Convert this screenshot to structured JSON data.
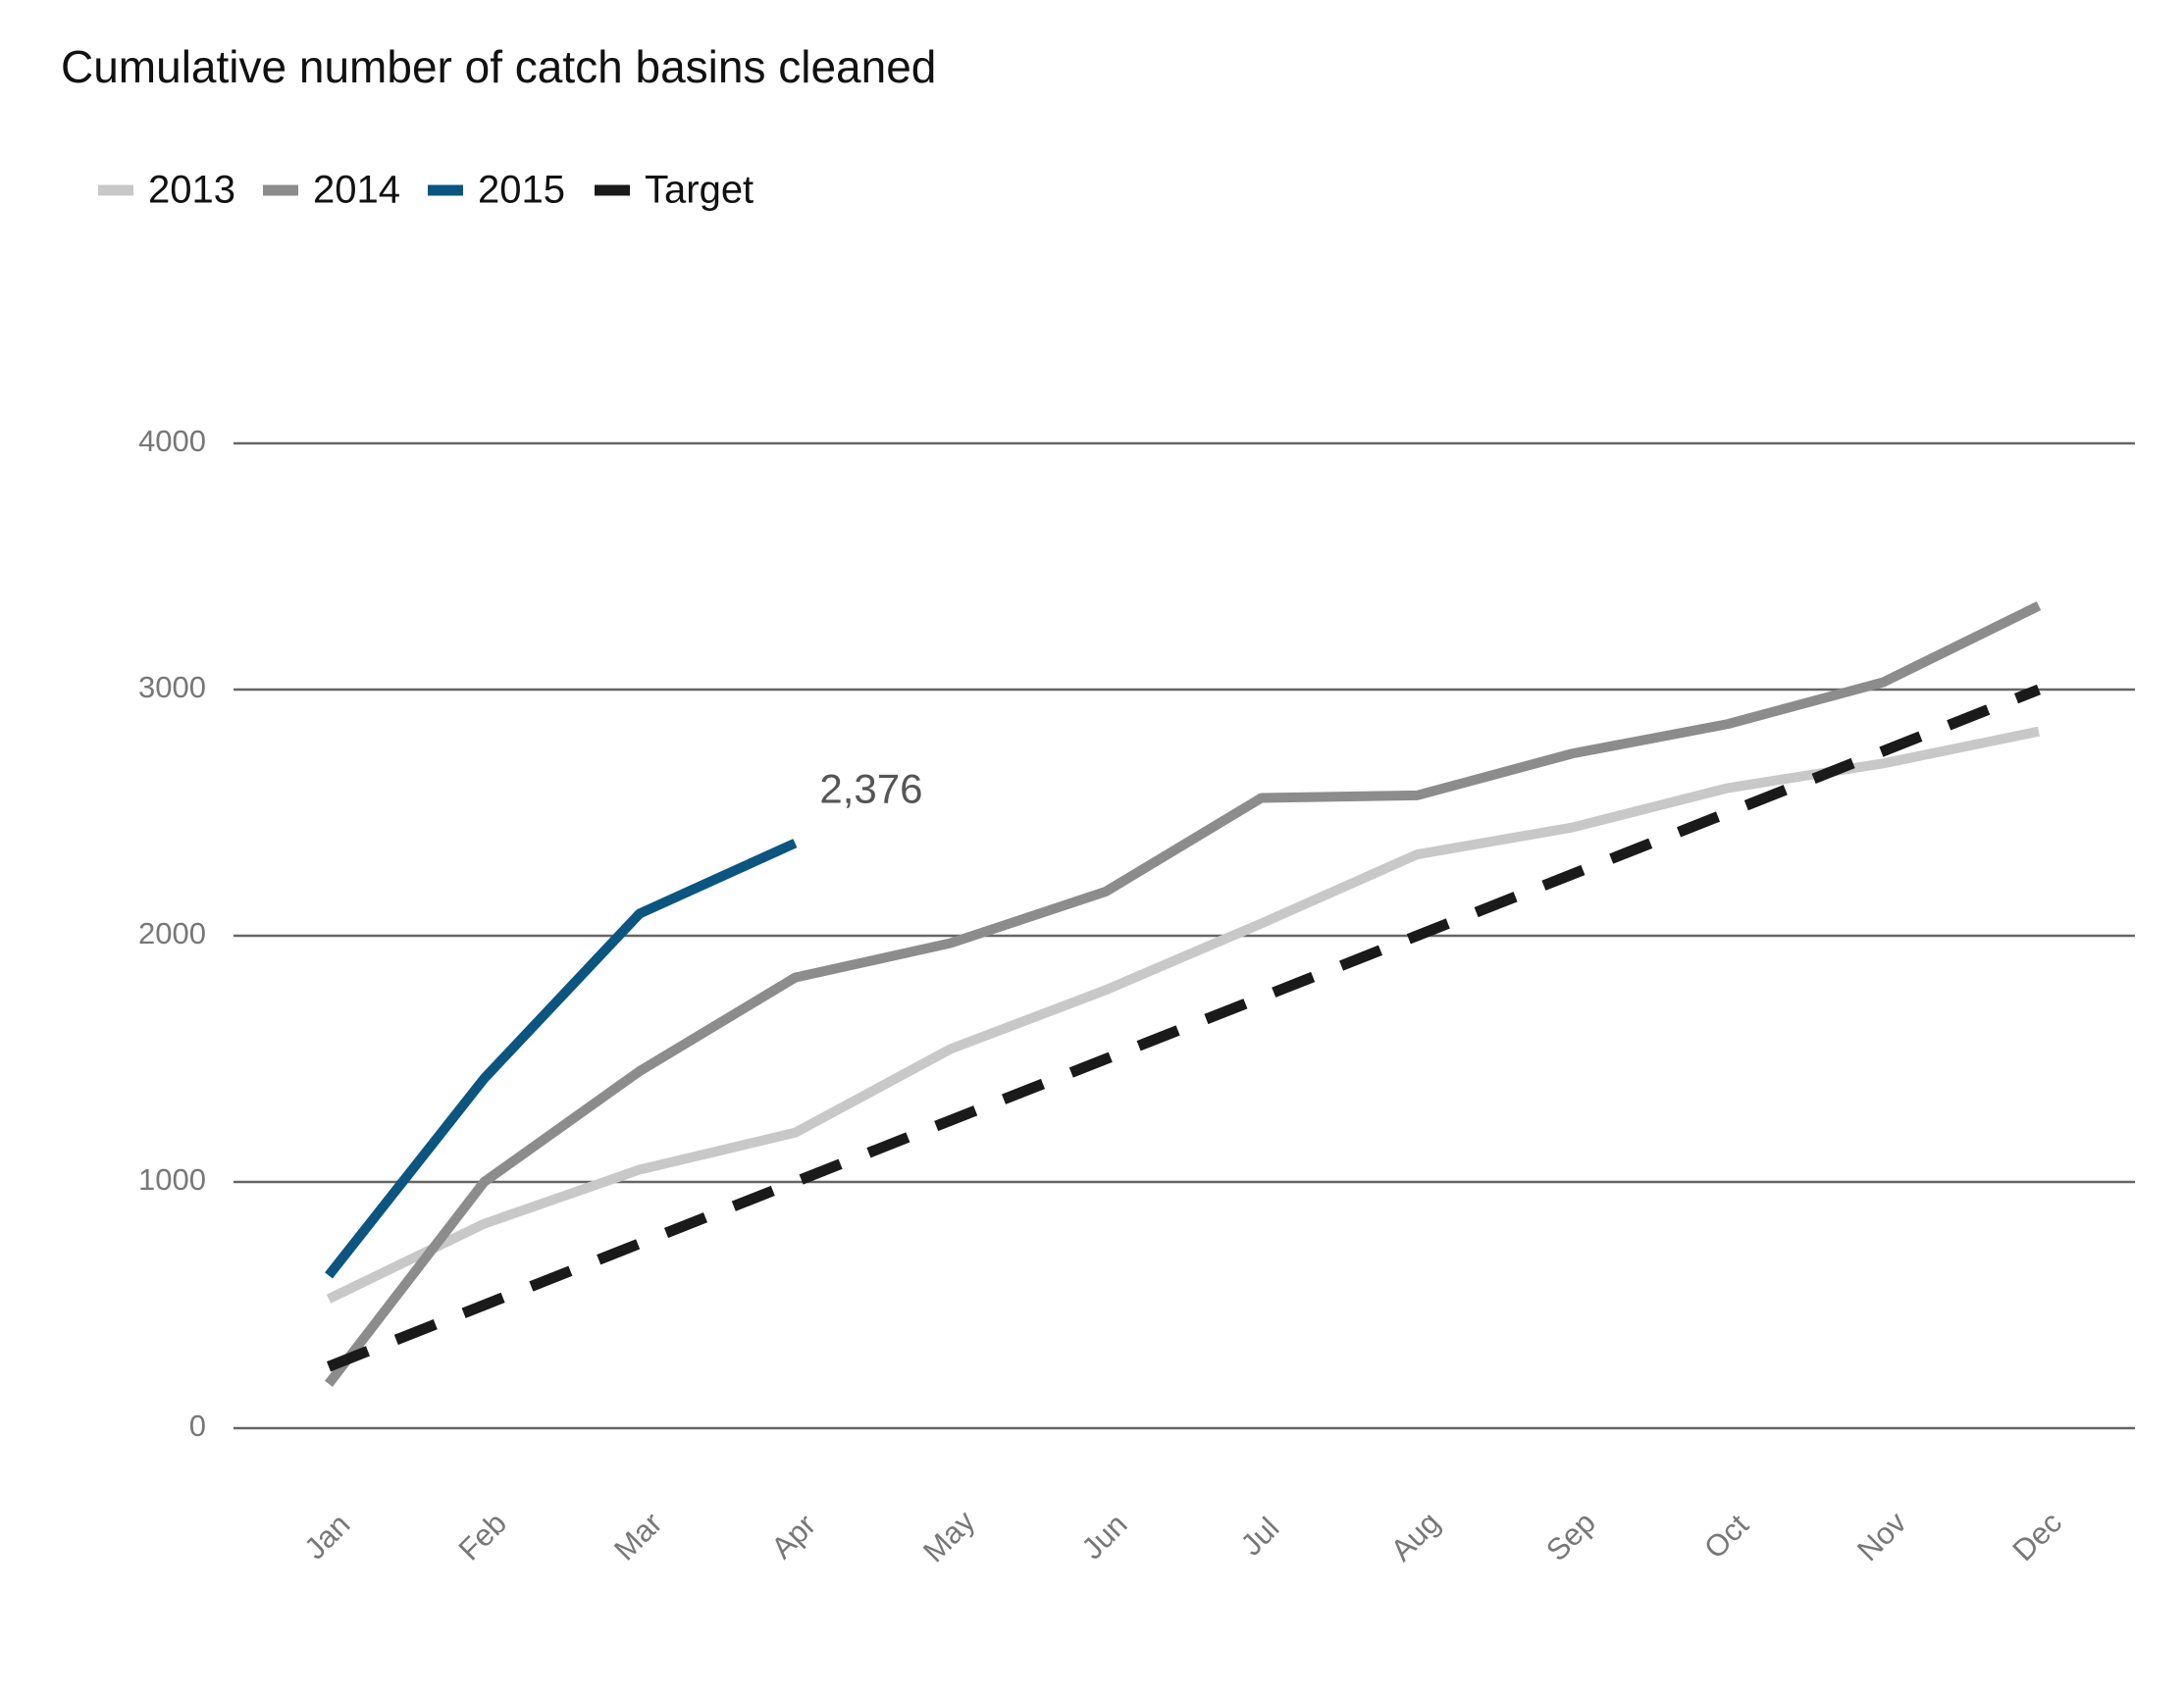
{
  "chart_data": {
    "type": "line",
    "title": "Cumulative number of catch basins cleaned",
    "categories": [
      "Jan",
      "Feb",
      "Mar",
      "Apr",
      "May",
      "Jun",
      "Jul",
      "Aug",
      "Sep",
      "Oct",
      "Nov",
      "Dec"
    ],
    "series": [
      {
        "name": "2013",
        "color": "#c8c8c8",
        "values": [
          525,
          830,
          1050,
          1200,
          1540,
          1780,
          2050,
          2330,
          2440,
          2600,
          2700,
          2830
        ]
      },
      {
        "name": "2014",
        "color": "#8c8c8c",
        "values": [
          180,
          1000,
          1450,
          1830,
          1970,
          2180,
          2560,
          2570,
          2740,
          2860,
          3030,
          3340
        ]
      },
      {
        "name": "2015",
        "color": "#0b5580",
        "values": [
          620,
          1420,
          2090,
          2376,
          null,
          null,
          null,
          null,
          null,
          null,
          null,
          null
        ],
        "value_labels": [
          null,
          null,
          null,
          "2,376",
          null,
          null,
          null,
          null,
          null,
          null,
          null,
          null
        ]
      },
      {
        "name": "Target",
        "color": "#1a1a1a",
        "dashed": true,
        "values": [
          250,
          500,
          750,
          1000,
          1250,
          1500,
          1750,
          2000,
          2250,
          2500,
          2750,
          3000
        ]
      }
    ],
    "ylim": [
      0,
      4000
    ],
    "yticks": [
      0,
      1000,
      2000,
      3000,
      4000
    ],
    "grid": true,
    "legend": "top-left"
  }
}
